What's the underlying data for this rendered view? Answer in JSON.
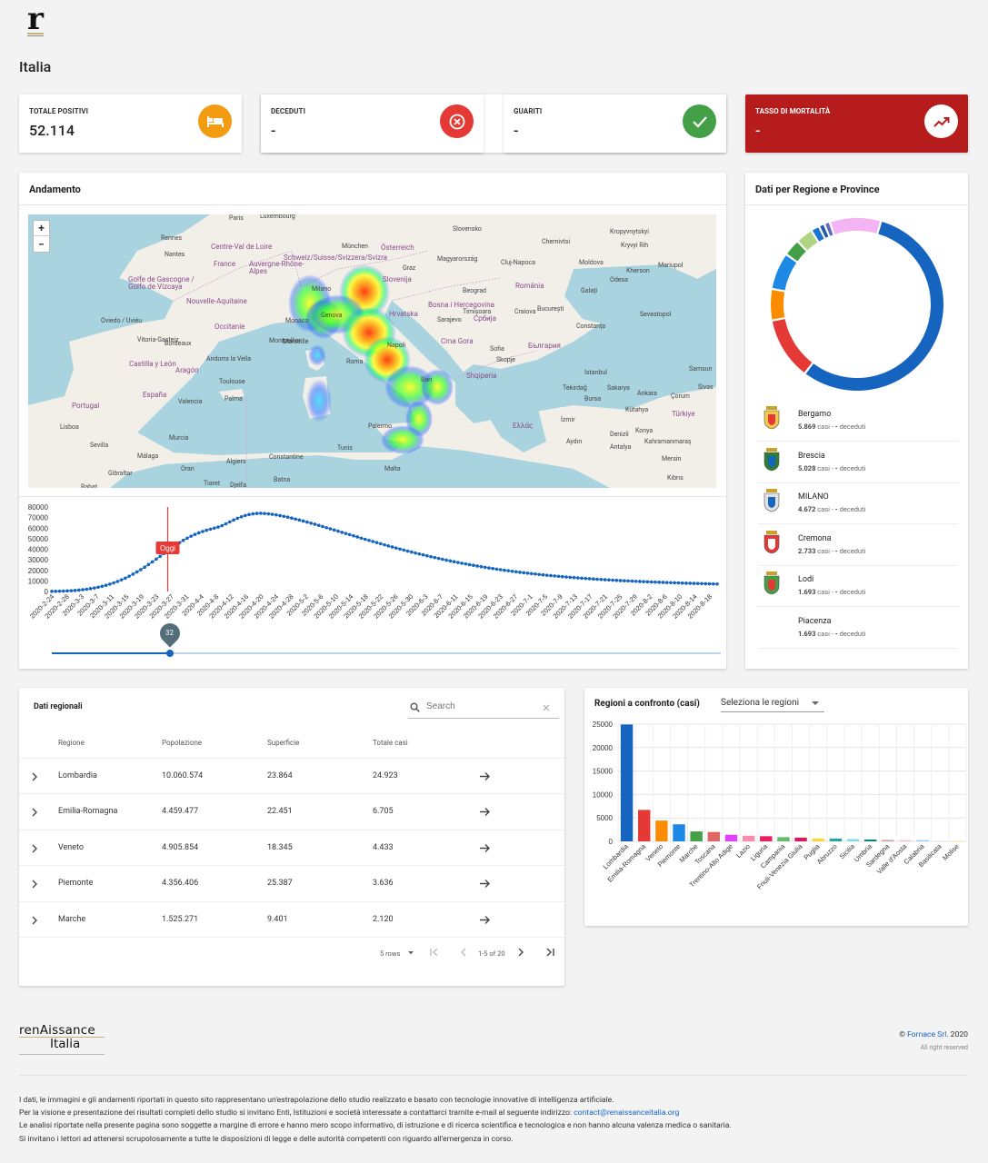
{
  "header": {
    "logo_letter": "r",
    "page_title": "Italia"
  },
  "stats": [
    {
      "label": "TOTALE POSITIVI",
      "value": "52.114",
      "icon": "bed-icon",
      "color": "#f39c12"
    },
    {
      "label": "DECEDUTI",
      "value": "-",
      "icon": "cancel-circle-icon",
      "color": "#e53935"
    },
    {
      "label": "GUARITI",
      "value": "-",
      "icon": "check-icon",
      "color": "#43a047"
    },
    {
      "label": "TASSO DI MORTALITÀ",
      "value": "-",
      "icon": "trending-up-icon",
      "color": "#b71c1c"
    }
  ],
  "andamento": {
    "title": "Andamento",
    "map_zoom_in": "+",
    "map_zoom_out": "−",
    "map_labels": {
      "cities": [
        "Paris",
        "Luxembourg",
        "Rennes",
        "Nantes",
        "München",
        "Graz",
        "Slovensko",
        "Magyarország",
        "Cluj-Napoca",
        "Chernivtsi",
        "Kropyvnytskyi",
        "Kryvyi Rih",
        "Moldova",
        "Kherson",
        "Mariupol",
        "Odesa",
        "Galați",
        "Sevastopol",
        "Bordeaux",
        "Toulouse",
        "Montpellier",
        "Marseille",
        "Andorra la Vella",
        "Oviedo / Uviéu",
        "Vitoria-Gasteiz",
        "Valencia",
        "Palma",
        "Murcia",
        "Sevilla",
        "Málaga",
        "Lisboa",
        "Gibraltar",
        "Rabat",
        "Oran",
        "Algiers",
        "Constantine",
        "Tiaret",
        "Djelfa",
        "Batna",
        "Tunis",
        "Malta",
        "Milano",
        "Monaco",
        "Genova",
        "Roma",
        "Bari",
        "Palermo",
        "Napoli",
        "Sarajevo",
        "Beograd",
        "Timișoara",
        "Craiova",
        "București",
        "Constanța",
        "Sofia",
        "Skopje",
        "Istanbul",
        "Tekirdağ",
        "Bursa",
        "Sakarya",
        "Ankara",
        "Çorum",
        "Sivas",
        "Samsun",
        "Kütahya",
        "İzmir",
        "Aydın",
        "Denizli",
        "Antalya",
        "Konya",
        "Kahramanmaraş",
        "Mersin",
        "Kıbrıs"
      ],
      "countries": [
        "France",
        "Schweiz/Suisse/Svizzera/Svizra",
        "Österreich",
        "Slovenija",
        "Hrvatska",
        "Crna Gora",
        "Србија",
        "Shqiperia",
        "Bosna i Hercegovina",
        "România",
        "България",
        "Ελλάς",
        "Türkiye",
        "España",
        "Portugal",
        "Aragón",
        "Castilla y León",
        "Occitanie",
        "Nouvelle-Aquitaine",
        "Centre-Val de Loire",
        "Auvergne-Rhône-Alpes",
        "Golfe de Gascogne / Golfo de Vizcaya"
      ]
    },
    "chart_data": {
      "type": "scatter",
      "x_tick_labels": [
        "2020-2-24",
        "2020-2-28",
        "2020-3-3",
        "2020-3-7",
        "2020-3-11",
        "2020-3-15",
        "2020-3-19",
        "2020-3-23",
        "2020-3-27",
        "2020-3-31",
        "2020-4-4",
        "2020-4-8",
        "2020-4-12",
        "2020-4-16",
        "2020-4-20",
        "2020-4-24",
        "2020-4-28",
        "2020-5-2",
        "2020-5-6",
        "2020-5-10",
        "2020-5-14",
        "2020-5-18",
        "2020-5-22",
        "2020-5-26",
        "2020-5-30",
        "2020-6-3",
        "2020-6-7",
        "2020-6-11",
        "2020-6-15",
        "2020-6-19",
        "2020-6-23",
        "2020-6-27",
        "2020-7-1",
        "2020-7-5",
        "2020-7-9",
        "2020-7-13",
        "2020-7-17",
        "2020-7-21",
        "2020-7-25",
        "2020-7-29",
        "2020-8-2",
        "2020-8-6",
        "2020-8-10",
        "2020-8-14",
        "2020-8-18"
      ],
      "y_ticks": [
        0,
        10000,
        20000,
        30000,
        40000,
        50000,
        60000,
        70000,
        80000
      ],
      "ylim": [
        0,
        80000
      ],
      "x_start": "2020-2-24",
      "x_end": "2020-8-20",
      "today_marker": {
        "x": "2020-3-26",
        "label": "Oggi"
      },
      "peak": {
        "x": "2020-4-8",
        "y": 74000
      },
      "series": [
        {
          "y": [
            120,
            190,
            280,
            400,
            560,
            760,
            1010,
            1320,
            1700,
            2150,
            2700,
            3330,
            4060,
            4900,
            5860,
            6950,
            8170,
            9530,
            11040,
            12690,
            14490,
            16430,
            18510,
            20720,
            23060,
            25510,
            28050,
            30660,
            33320,
            36000,
            38660,
            41260,
            43780,
            46180,
            48420,
            50480,
            52350,
            54030,
            55520,
            56840,
            58000,
            59030,
            60000,
            61020,
            62370,
            64080,
            65890,
            67670,
            69310,
            70730,
            71910,
            72830,
            73500,
            73920,
            74000,
            73850,
            73530,
            73080,
            72520,
            71870,
            71140,
            70350,
            69500,
            68610,
            67680,
            66720,
            65730,
            64710,
            63670,
            62600,
            61530,
            60440,
            59340,
            58240,
            57140,
            56030,
            54930,
            53820,
            52720,
            51630,
            50540,
            49460,
            48380,
            47320,
            46260,
            45220,
            44190,
            43170,
            42170,
            41180,
            40200,
            39240,
            38290,
            37360,
            36440,
            35540,
            34660,
            33790,
            32940,
            32110,
            31290,
            30490,
            29710,
            28950,
            28200,
            27480,
            26770,
            26080,
            25400,
            24750,
            24110,
            23490,
            22890,
            22300,
            21740,
            21180,
            20650,
            20130,
            19630,
            19140,
            18670,
            18210,
            17760,
            17330,
            16910,
            16510,
            16120,
            15740,
            15380,
            15030,
            14690,
            14360,
            14040,
            13730,
            13440,
            13150,
            12870,
            12600,
            12340,
            12090,
            11850,
            11620,
            11390,
            11170,
            10960,
            10760,
            10560,
            10370,
            10180,
            10000,
            9830,
            9660,
            9500,
            9340,
            9190,
            9040,
            8900,
            8760,
            8630,
            8500,
            8370,
            8250,
            8130,
            8010,
            7900,
            7790,
            7680,
            7580,
            7480,
            7380,
            7280,
            7190,
            7100
          ]
        }
      ]
    },
    "slider": {
      "value": "32",
      "fraction": 0.176
    }
  },
  "province_panel": {
    "title": "Dati per Regione e Province",
    "donut_data": {
      "type": "pie",
      "values": [
        52.5,
        11,
        5.5,
        6.5,
        3,
        3,
        1.5,
        1,
        1,
        9
      ],
      "colors": [
        "#1565c0",
        "#e53935",
        "#fb8c00",
        "#1e88e5",
        "#43a047",
        "#aed581",
        "#1976d2",
        "#1e5aa8",
        "#5c6bc0",
        "#f4b4f4"
      ]
    },
    "items": [
      {
        "name": "Bergamo",
        "cases": "5.869",
        "stats_suffix": " casi - ",
        "deaths": "-",
        "deaths_label": " deceduti"
      },
      {
        "name": "Brescia",
        "cases": "5.028",
        "stats_suffix": " casi - ",
        "deaths": "-",
        "deaths_label": " deceduti"
      },
      {
        "name": "MILANO",
        "cases": "4.672",
        "stats_suffix": " casi - ",
        "deaths": "-",
        "deaths_label": " deceduti"
      },
      {
        "name": "Cremona",
        "cases": "2.733",
        "stats_suffix": " casi - ",
        "deaths": "-",
        "deaths_label": " deceduti"
      },
      {
        "name": "Lodi",
        "cases": "1.693",
        "stats_suffix": " casi - ",
        "deaths": "-",
        "deaths_label": " deceduti"
      },
      {
        "name": "Piacenza",
        "cases": "1.693",
        "stats_suffix": " casi - ",
        "deaths": "-",
        "deaths_label": " deceduti"
      }
    ]
  },
  "regional_table": {
    "title": "Dati regionali",
    "search_placeholder": "Search",
    "columns": [
      "Regione",
      "Popolazione",
      "Superficie",
      "Totale casi"
    ],
    "rows": [
      [
        "Lombardia",
        "10.060.574",
        "23.864",
        "24.923"
      ],
      [
        "Emilia-Romagna",
        "4.459.477",
        "22.451",
        "6.705"
      ],
      [
        "Veneto",
        "4.905.854",
        "18.345",
        "4.433"
      ],
      [
        "Piemonte",
        "4.356.406",
        "25.387",
        "3.636"
      ],
      [
        "Marche",
        "1.525.271",
        "9.401",
        "2.120"
      ]
    ],
    "rows_per_page": "5 rows",
    "page_info": "1-5 of 20"
  },
  "compare": {
    "title": "Regioni a confronto (casi)",
    "select_label": "Seleziona le regioni",
    "chart_data": {
      "type": "bar",
      "categories": [
        "Lombardia",
        "Emilia-Romagna",
        "Veneto",
        "Piemonte",
        "Marche",
        "Toscana",
        "Trentino-Alto Adige",
        "Lazio",
        "Liguria",
        "Campania",
        "Friuli-Venezia Giulia",
        "Puglia",
        "Abruzzo",
        "Sicilia",
        "Umbria",
        "Sardegna",
        "Valle d'Aosta",
        "Calabria",
        "Basilicata",
        "Molise"
      ],
      "values": [
        24923,
        6705,
        4433,
        3636,
        2120,
        2000,
        1400,
        1200,
        1100,
        900,
        800,
        600,
        600,
        500,
        400,
        300,
        250,
        250,
        60,
        40
      ],
      "colors": [
        "#1565c0",
        "#e53935",
        "#fb8c00",
        "#1e88e5",
        "#43a047",
        "#e06666",
        "#e040fb",
        "#f48fb1",
        "#e91e63",
        "#66bb6a",
        "#d81b60",
        "#fdd835",
        "#26a69a",
        "#80deea",
        "#00897b",
        "#c5a3a3",
        "#f8bbd0",
        "#90caf9",
        "#cfd8dc",
        "#ffe082"
      ],
      "y_ticks": [
        0,
        5000,
        10000,
        15000,
        20000,
        25000
      ],
      "ylim": [
        0,
        25000
      ]
    }
  },
  "footer": {
    "brand_line1": "renAissance",
    "brand_line2": "Italia",
    "copyright_prefix": "© ",
    "copyright_link": "Fornace Srl",
    "copyright_suffix": ". 2020",
    "rights": "All right reserved",
    "disclaimer_1": "I dati, le immagini e gli andamenti riportati in questo sito rappresentano un'estrapolazione dello studio realizzato e basato con tecnologie innovative di intelligenza artificiale.",
    "disclaimer_2": "Per la visione e presentazione dei risultati completi dello studio si invitano Enti, Istituzioni e società interessate a contattarci tramite e-mail al seguente indirizzo: ",
    "disclaimer_2_email": "contact@renaissanceitalia.org",
    "disclaimer_3": "Le analisi riportate nella presente pagina sono soggette a margine di errore e hanno mero scopo informativo, di istruzione e di ricerca scientifica e tecnologica e non hanno alcuna valenza medica o sanitaria.",
    "disclaimer_4": "Si invitano i lettori ad attenersi scrupolosamente a tutte le disposizioni di legge e delle autorità competenti con riguardo all'emergenza in corso."
  }
}
